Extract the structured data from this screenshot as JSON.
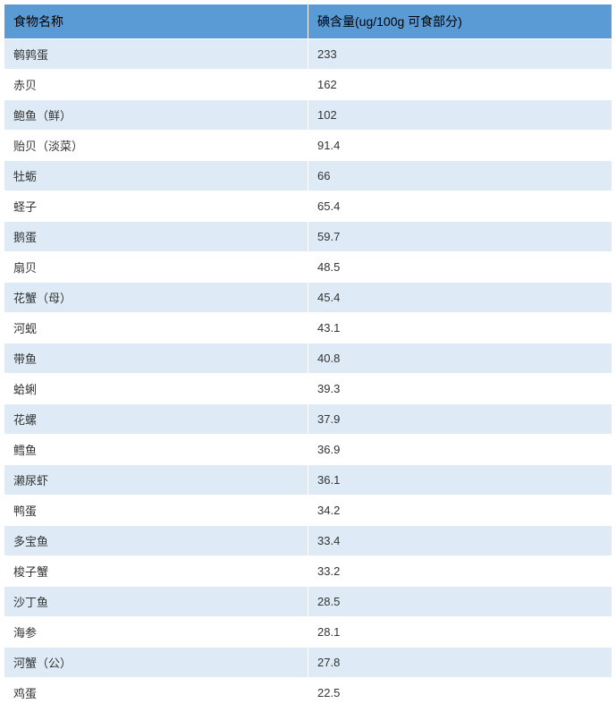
{
  "table": {
    "type": "table",
    "header_background": "#5b9bd5",
    "row_odd_background": "#deebf6",
    "row_even_background": "#ffffff",
    "border_color": "#ffffff",
    "text_color": "#333333",
    "header_text_color": "#000000",
    "font_size_header": 14,
    "font_size_cell": 13,
    "columns": [
      {
        "label": "食物名称",
        "width_pct": 50,
        "align": "left"
      },
      {
        "label": "碘含量(ug/100g 可食部分)",
        "width_pct": 50,
        "align": "left"
      }
    ],
    "rows": [
      {
        "name": "鹌鹑蛋",
        "value": "233"
      },
      {
        "name": "赤贝",
        "value": "162"
      },
      {
        "name": "鲍鱼（鲜）",
        "value": "102"
      },
      {
        "name": "贻贝（淡菜）",
        "value": "91.4"
      },
      {
        "name": "牡蛎",
        "value": "66"
      },
      {
        "name": "蛏子",
        "value": "65.4"
      },
      {
        "name": "鹅蛋",
        "value": "59.7"
      },
      {
        "name": "扇贝",
        "value": "48.5"
      },
      {
        "name": "花蟹（母）",
        "value": "45.4"
      },
      {
        "name": "河蚬",
        "value": "43.1"
      },
      {
        "name": "带鱼",
        "value": "40.8"
      },
      {
        "name": "蛤蜊",
        "value": "39.3"
      },
      {
        "name": "花螺",
        "value": "37.9"
      },
      {
        "name": "鳕鱼",
        "value": "36.9"
      },
      {
        "name": "濑尿虾",
        "value": "36.1"
      },
      {
        "name": "鸭蛋",
        "value": "34.2"
      },
      {
        "name": "多宝鱼",
        "value": "33.4"
      },
      {
        "name": "梭子蟹",
        "value": "33.2"
      },
      {
        "name": "沙丁鱼",
        "value": "28.5"
      },
      {
        "name": "海参",
        "value": "28.1"
      },
      {
        "name": "河蟹（公）",
        "value": "27.8"
      },
      {
        "name": "鸡蛋",
        "value": "22.5"
      }
    ]
  }
}
